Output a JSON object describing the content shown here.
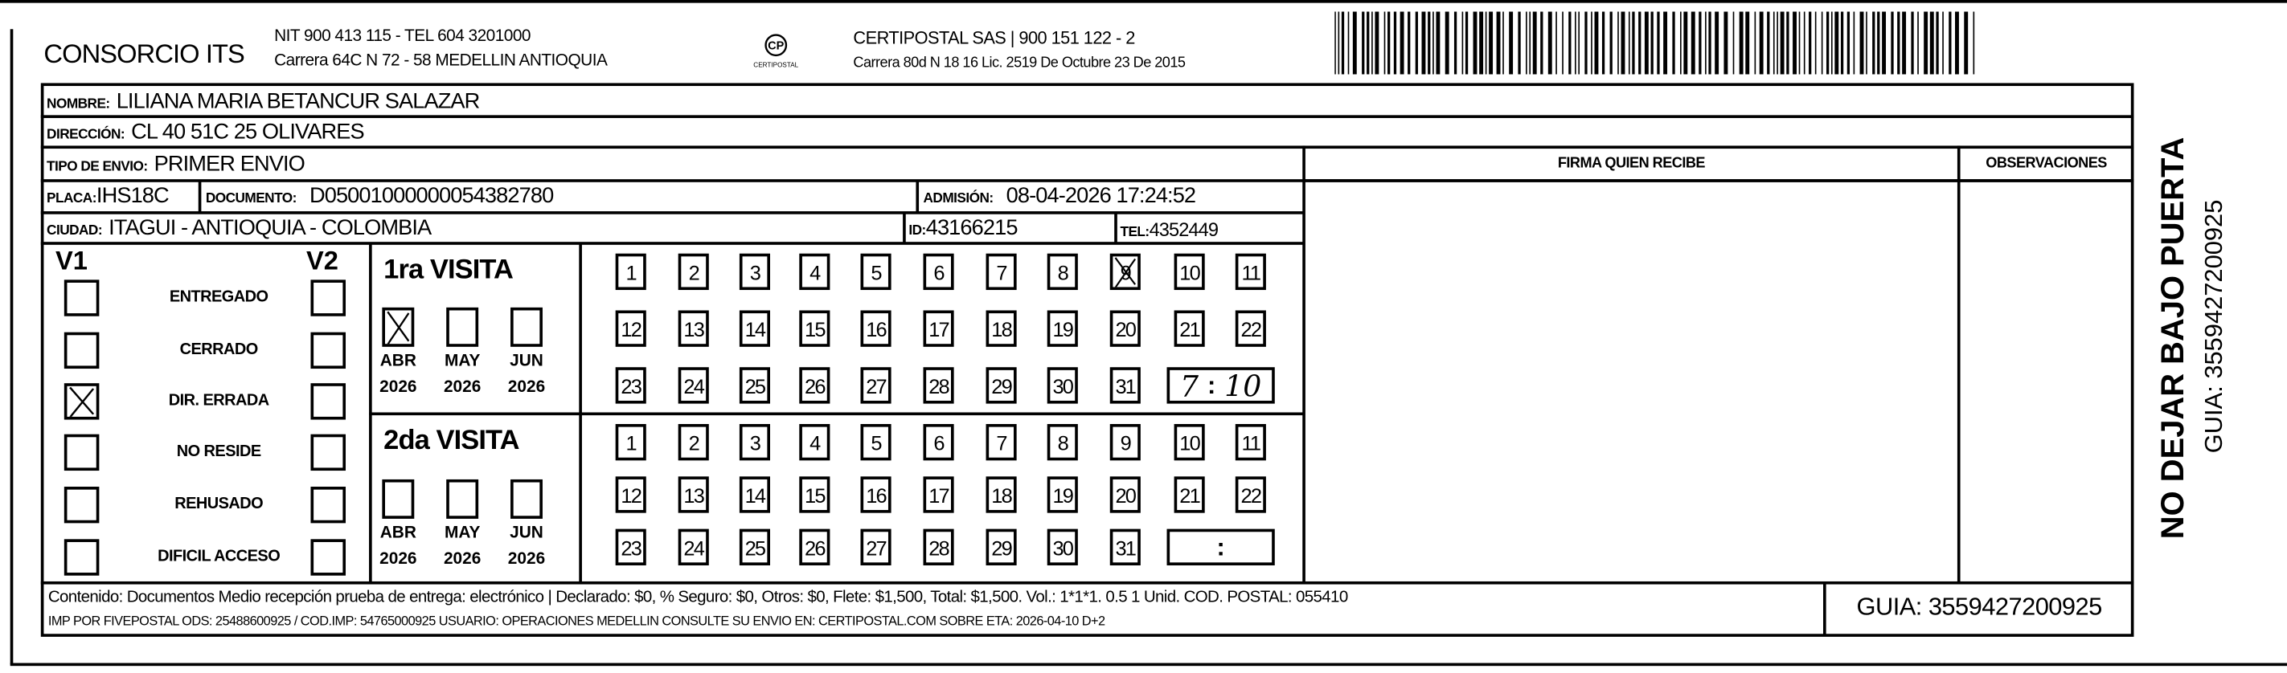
{
  "header": {
    "company": "CONSORCIO ITS",
    "company_line1": "NIT 900 413 115 - TEL 604 3201000",
    "company_line2": "Carrera 64C N 72 - 58 MEDELLIN ANTIOQUIA",
    "logo_text": "CERTIPOSTAL",
    "carrier_line1": "CERTIPOSTAL SAS | 900 151 122 - 2",
    "carrier_line2": "Carrera 80d N 18 16  Lic. 2519 De Octubre 23 De 2015",
    "barcode_value": "3559427200925"
  },
  "fields": {
    "nombre_label": "NOMBRE:",
    "nombre": "LILIANA MARIA BETANCUR SALAZAR",
    "direccion_label": "DIRECCIÓN:",
    "direccion": "CL 40 51C 25 OLIVARES",
    "tipo_label": "TIPO DE ENVIO:",
    "tipo": "PRIMER ENVIO",
    "placa_label": "PLACA:",
    "placa": "IHS18C",
    "documento_label": "DOCUMENTO:",
    "documento": "D05001000000054382780",
    "admision_label": "ADMISIÓN:",
    "admision": "08-04-2026 17:24:52",
    "ciudad_label": "CIUDAD:",
    "ciudad": "ITAGUI - ANTIOQUIA - COLOMBIA",
    "id_label": "ID:",
    "id": "43166215",
    "tel_label": "TEL:",
    "tel": "4352449"
  },
  "columns": {
    "firma": "FIRMA QUIEN RECIBE",
    "observaciones": "OBSERVACIONES"
  },
  "status": {
    "v1_label": "V1",
    "v2_label": "V2",
    "items": [
      {
        "label": "ENTREGADO",
        "v1": false,
        "v2": false
      },
      {
        "label": "CERRADO",
        "v1": false,
        "v2": false
      },
      {
        "label": "DIR. ERRADA",
        "v1": true,
        "v2": false
      },
      {
        "label": "NO RESIDE",
        "v1": false,
        "v2": false
      },
      {
        "label": "REHUSADO",
        "v1": false,
        "v2": false
      },
      {
        "label": "DIFICIL ACCESO",
        "v1": false,
        "v2": false
      }
    ]
  },
  "visits": [
    {
      "title": "1ra VISITA",
      "months": [
        {
          "name": "ABR",
          "year": "2026",
          "checked": true
        },
        {
          "name": "MAY",
          "year": "2026",
          "checked": false
        },
        {
          "name": "JUN",
          "year": "2026",
          "checked": false
        }
      ],
      "checked_day": 9,
      "time_hour": "7",
      "time_sep": ":",
      "time_min": "10"
    },
    {
      "title": "2da VISITA",
      "months": [
        {
          "name": "ABR",
          "year": "2026",
          "checked": false
        },
        {
          "name": "MAY",
          "year": "2026",
          "checked": false
        },
        {
          "name": "JUN",
          "year": "2026",
          "checked": false
        }
      ],
      "checked_day": null,
      "time_hour": "",
      "time_sep": ":",
      "time_min": ""
    }
  ],
  "footer": {
    "line1": "Contenido: Documentos Medio recepción prueba de entrega: electrónico | Declarado: $0, % Seguro: $0, Otros: $0, Flete: $1,500, Total: $1,500. Vol.: 1*1*1. 0.5  1 Unid. COD. POSTAL: 055410",
    "line2": "IMP POR FIVEPOSTAL ODS: 25488600925 / COD.IMP: 54765000925 USUARIO: OPERACIONES MEDELLIN CONSULTE SU ENVIO EN: CERTIPOSTAL.COM SOBRE ETA: 2026-04-10 D+2",
    "guia": "GUIA: 3559427200925"
  },
  "side": {
    "warning": "NO DEJAR BAJO PUERTA",
    "guia": "GUIA: 3559427200925"
  }
}
